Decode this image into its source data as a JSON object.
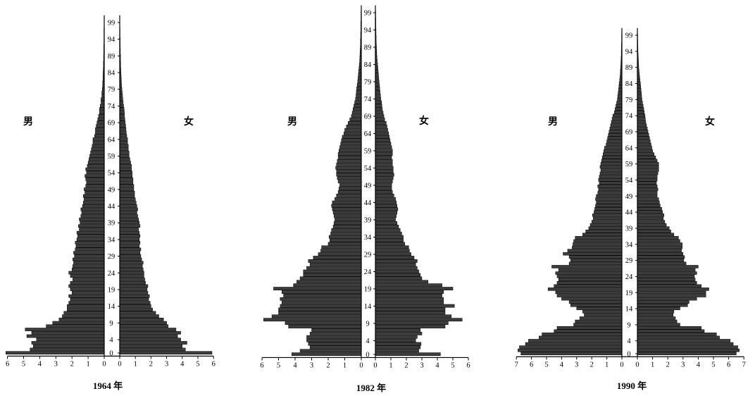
{
  "colors": {
    "bars": "#3c3c3c",
    "axis": "#000000"
  },
  "chart_data": [
    {
      "type": "bar",
      "orientation": "horizontal",
      "title": "1964 年",
      "ylim": [
        0,
        99
      ],
      "xlim": [
        0,
        6
      ],
      "grid": false,
      "age_ticks": [
        99,
        94,
        89,
        84,
        79,
        74,
        69,
        64,
        59,
        54,
        49,
        44,
        39,
        34,
        29,
        24,
        19,
        14,
        9,
        4,
        0
      ],
      "x_ticks_left": [
        6,
        5,
        4,
        3,
        2,
        1,
        0
      ],
      "x_ticks_right": [
        0,
        1,
        2,
        3,
        4,
        5,
        6
      ],
      "series": [
        {
          "name": "男",
          "values": [
            6.1,
            4.6,
            4.4,
            4.5,
            4.2,
            4.8,
            4.5,
            4.9,
            3.6,
            3.2,
            2.8,
            2.6,
            2.5,
            2.3,
            2.3,
            2.2,
            2.1,
            2.2,
            2.0,
            2.1,
            2.2,
            2.1,
            1.95,
            2.1,
            2.2,
            2.0,
            1.95,
            1.9,
            1.95,
            1.85,
            1.9,
            1.8,
            1.75,
            1.8,
            1.7,
            1.65,
            1.7,
            1.55,
            1.6,
            1.5,
            1.55,
            1.45,
            1.4,
            1.45,
            1.35,
            1.3,
            1.25,
            1.3,
            1.2,
            1.25,
            1.15,
            1.1,
            1.15,
            1.2,
            1.1,
            1.15,
            1.05,
            1.0,
            0.95,
            0.9,
            0.85,
            0.8,
            0.75,
            0.7,
            0.7,
            0.6,
            0.55,
            0.55,
            0.5,
            0.45,
            0.4,
            0.35,
            0.3,
            0.3,
            0.25,
            0.2,
            0.2,
            0.15,
            0.15,
            0.12,
            0.1,
            0.1,
            0.08,
            0.08,
            0.07,
            0.06,
            0.05,
            0.05,
            0.04,
            0.04,
            0.03,
            0.03,
            0.03,
            0.02,
            0.02,
            0.02,
            0.02,
            0.02,
            0.01,
            0.01
          ]
        },
        {
          "name": "女",
          "values": [
            5.9,
            4.2,
            4.0,
            4.3,
            3.9,
            3.7,
            3.9,
            3.6,
            3.1,
            3.0,
            2.8,
            2.5,
            2.3,
            2.1,
            2.0,
            1.95,
            1.85,
            1.9,
            1.8,
            1.75,
            1.8,
            1.65,
            1.6,
            1.55,
            1.55,
            1.5,
            1.45,
            1.5,
            1.4,
            1.35,
            1.3,
            1.35,
            1.25,
            1.3,
            1.25,
            1.3,
            1.25,
            1.2,
            1.3,
            1.25,
            1.2,
            1.15,
            1.1,
            1.15,
            1.1,
            1.05,
            1.0,
            0.95,
            0.95,
            0.9,
            0.9,
            0.85,
            0.85,
            0.8,
            0.8,
            0.75,
            0.75,
            0.7,
            0.65,
            0.6,
            0.6,
            0.55,
            0.55,
            0.5,
            0.5,
            0.45,
            0.42,
            0.4,
            0.38,
            0.35,
            0.33,
            0.3,
            0.3,
            0.28,
            0.25,
            0.22,
            0.2,
            0.18,
            0.16,
            0.14,
            0.12,
            0.11,
            0.1,
            0.09,
            0.08,
            0.07,
            0.06,
            0.06,
            0.05,
            0.05,
            0.04,
            0.04,
            0.03,
            0.03,
            0.03,
            0.02,
            0.02,
            0.02,
            0.01,
            0.01
          ]
        }
      ]
    },
    {
      "type": "bar",
      "orientation": "horizontal",
      "title": "1982 年",
      "ylim": [
        0,
        99
      ],
      "xlim": [
        0,
        6
      ],
      "grid": false,
      "age_ticks": [
        99,
        94,
        89,
        84,
        79,
        74,
        69,
        64,
        59,
        54,
        49,
        44,
        39,
        34,
        29,
        24,
        19,
        14,
        9,
        4,
        0
      ],
      "x_ticks_left": [
        6,
        5,
        4,
        3,
        2,
        1,
        0
      ],
      "x_ticks_right": [
        0,
        1,
        2,
        3,
        4,
        5,
        6
      ],
      "series": [
        {
          "name": "男",
          "values": [
            4.2,
            3.7,
            3.1,
            3.2,
            3.3,
            3.3,
            3.1,
            3.0,
            4.4,
            4.6,
            5.9,
            5.4,
            5.0,
            5.0,
            4.9,
            4.8,
            4.9,
            4.7,
            4.8,
            5.3,
            4.1,
            3.9,
            3.7,
            3.5,
            3.5,
            3.3,
            3.1,
            3.2,
            2.9,
            2.6,
            2.45,
            2.4,
            2.0,
            1.9,
            1.95,
            1.85,
            1.8,
            1.7,
            1.65,
            1.6,
            1.65,
            1.7,
            1.75,
            1.8,
            1.75,
            1.6,
            1.5,
            1.4,
            1.35,
            1.3,
            1.4,
            1.45,
            1.5,
            1.5,
            1.55,
            1.5,
            1.45,
            1.4,
            1.4,
            1.35,
            1.3,
            1.25,
            1.2,
            1.15,
            1.05,
            1.0,
            0.9,
            0.8,
            0.7,
            0.6,
            0.55,
            0.5,
            0.45,
            0.4,
            0.35,
            0.32,
            0.3,
            0.28,
            0.25,
            0.22,
            0.2,
            0.18,
            0.16,
            0.14,
            0.12,
            0.1,
            0.09,
            0.08,
            0.07,
            0.06,
            0.05,
            0.05,
            0.04,
            0.04,
            0.03,
            0.03,
            0.03,
            0.02,
            0.02,
            0.02
          ]
        },
        {
          "name": "女",
          "values": [
            4.2,
            2.8,
            2.9,
            2.95,
            2.6,
            2.7,
            3.0,
            2.9,
            4.5,
            4.7,
            5.6,
            4.9,
            4.5,
            4.5,
            5.1,
            4.4,
            4.4,
            4.3,
            4.4,
            5.0,
            4.3,
            3.4,
            3.0,
            2.9,
            2.8,
            2.7,
            2.6,
            2.7,
            2.5,
            2.3,
            2.2,
            2.15,
            1.9,
            1.8,
            1.8,
            1.7,
            1.6,
            1.5,
            1.4,
            1.3,
            1.35,
            1.4,
            1.45,
            1.4,
            1.35,
            1.3,
            1.2,
            1.1,
            1.05,
            1.05,
            1.1,
            1.15,
            1.2,
            1.15,
            1.15,
            1.1,
            1.1,
            1.05,
            1.1,
            1.1,
            1.05,
            1.0,
            0.95,
            0.9,
            0.85,
            0.8,
            0.75,
            0.7,
            0.6,
            0.55,
            0.5,
            0.45,
            0.42,
            0.4,
            0.35,
            0.33,
            0.3,
            0.28,
            0.26,
            0.24,
            0.22,
            0.2,
            0.18,
            0.16,
            0.14,
            0.12,
            0.1,
            0.09,
            0.08,
            0.07,
            0.06,
            0.05,
            0.05,
            0.04,
            0.04,
            0.03,
            0.03,
            0.03,
            0.02,
            0.02
          ]
        }
      ]
    },
    {
      "type": "bar",
      "orientation": "horizontal",
      "title": "1990 年",
      "ylim": [
        0,
        99
      ],
      "xlim": [
        0,
        7
      ],
      "grid": false,
      "age_ticks": [
        99,
        94,
        89,
        84,
        79,
        74,
        69,
        64,
        59,
        54,
        49,
        44,
        39,
        34,
        29,
        24,
        19,
        14,
        9,
        4,
        0
      ],
      "x_ticks_left": [
        7,
        6,
        5,
        4,
        3,
        2,
        1,
        0
      ],
      "x_ticks_right": [
        0,
        1,
        2,
        3,
        4,
        5,
        6,
        7
      ],
      "series": [
        {
          "name": "男",
          "values": [
            6.7,
            6.9,
            6.8,
            6.4,
            6.2,
            5.5,
            5.3,
            4.5,
            4.3,
            3.2,
            3.1,
            2.8,
            2.5,
            2.6,
            3.0,
            3.4,
            3.5,
            4.0,
            4.3,
            4.4,
            4.9,
            4.5,
            4.3,
            4.2,
            4.3,
            4.4,
            4.2,
            4.65,
            3.5,
            3.4,
            3.5,
            3.9,
            3.6,
            3.3,
            3.25,
            3.2,
            3.1,
            2.6,
            2.4,
            2.2,
            2.1,
            2.0,
            1.9,
            1.95,
            1.85,
            1.8,
            1.75,
            1.7,
            1.75,
            1.7,
            1.6,
            1.55,
            1.6,
            1.5,
            1.55,
            1.5,
            1.45,
            1.4,
            1.45,
            1.4,
            1.35,
            1.3,
            1.25,
            1.2,
            1.15,
            1.05,
            1.0,
            0.95,
            0.9,
            0.85,
            0.8,
            0.75,
            0.7,
            0.65,
            0.6,
            0.5,
            0.45,
            0.4,
            0.35,
            0.3,
            0.28,
            0.25,
            0.22,
            0.2,
            0.18,
            0.15,
            0.13,
            0.11,
            0.1,
            0.08,
            0.07,
            0.06,
            0.05,
            0.04,
            0.04,
            0.03,
            0.03,
            0.02,
            0.02,
            0.02
          ]
        },
        {
          "name": "女",
          "values": [
            6.5,
            6.7,
            6.6,
            6.3,
            6.1,
            5.4,
            5.2,
            4.4,
            4.2,
            2.8,
            2.6,
            2.5,
            2.35,
            2.4,
            2.8,
            3.3,
            3.4,
            3.9,
            4.5,
            4.5,
            4.7,
            4.2,
            3.9,
            3.8,
            3.75,
            3.9,
            3.8,
            4.0,
            3.2,
            3.05,
            3.1,
            3.0,
            2.9,
            2.95,
            2.95,
            2.8,
            2.7,
            2.4,
            2.2,
            2.1,
            1.9,
            1.8,
            1.7,
            1.75,
            1.65,
            1.6,
            1.5,
            1.45,
            1.4,
            1.3,
            1.3,
            1.35,
            1.3,
            1.25,
            1.3,
            1.3,
            1.35,
            1.4,
            1.4,
            1.4,
            1.3,
            1.2,
            1.1,
            1.0,
            0.95,
            0.9,
            0.85,
            0.8,
            0.75,
            0.7,
            0.65,
            0.6,
            0.55,
            0.52,
            0.5,
            0.45,
            0.42,
            0.38,
            0.34,
            0.3,
            0.28,
            0.26,
            0.24,
            0.22,
            0.2,
            0.17,
            0.15,
            0.13,
            0.11,
            0.09,
            0.08,
            0.07,
            0.06,
            0.05,
            0.04,
            0.04,
            0.03,
            0.03,
            0.02,
            0.02
          ]
        }
      ]
    }
  ]
}
